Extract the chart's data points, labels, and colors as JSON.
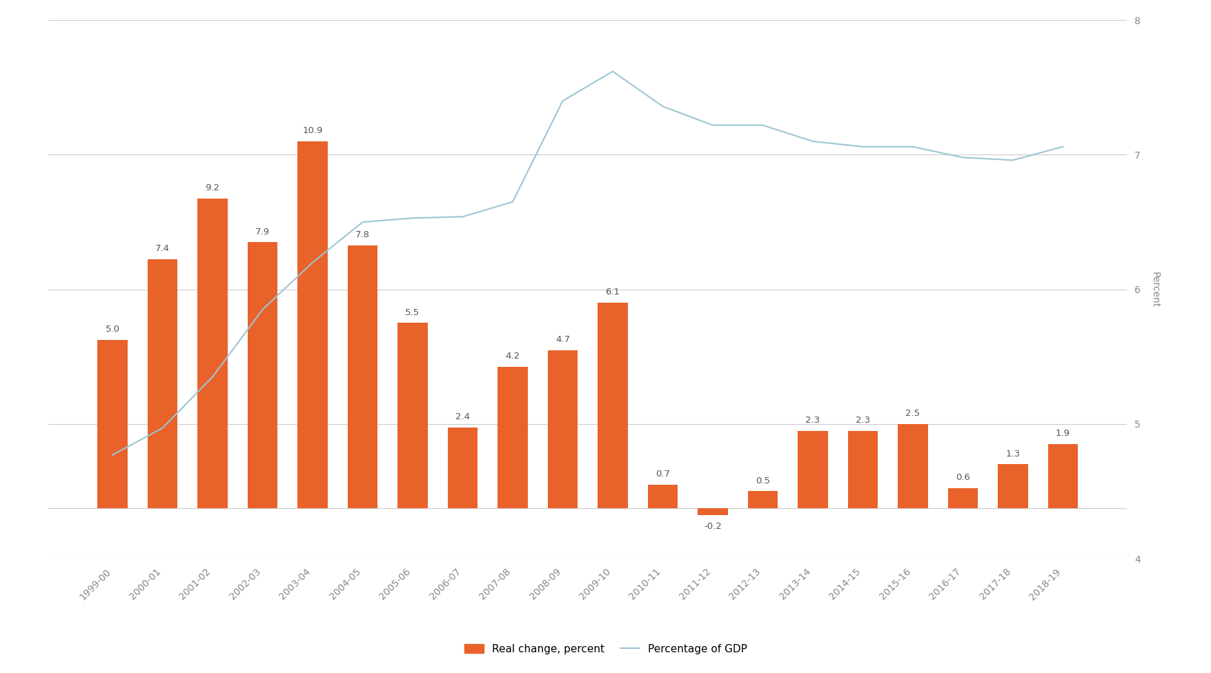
{
  "categories": [
    "1999-00",
    "2000-01",
    "2001-02",
    "2002-03",
    "2003-04",
    "2004-05",
    "2005-06",
    "2006-07",
    "2007-08",
    "2008-09",
    "2009-10",
    "2010-11",
    "2011-12",
    "2012-13",
    "2013-14",
    "2014-15",
    "2015-16",
    "2016-17",
    "2017-18",
    "2018-19"
  ],
  "bar_values": [
    5.0,
    7.4,
    9.2,
    7.9,
    10.9,
    7.8,
    5.5,
    2.4,
    4.2,
    4.7,
    6.1,
    0.7,
    -0.2,
    0.5,
    2.3,
    2.3,
    2.5,
    0.6,
    1.3,
    1.9
  ],
  "gdp_values": [
    4.77,
    4.97,
    5.35,
    5.85,
    6.2,
    6.5,
    6.53,
    6.54,
    6.65,
    7.4,
    7.62,
    7.36,
    7.22,
    7.22,
    7.1,
    7.06,
    7.06,
    6.98,
    6.96,
    7.06
  ],
  "bar_color": "#E8622A",
  "line_color": "#9DC5D4",
  "background_color": "#FFFFFF",
  "grid_color": "#CCCCCC",
  "bar_label_fontsize": 9.5,
  "bar_label_color": "#555555",
  "tick_label_fontsize": 10,
  "tick_label_color": "#888888",
  "ylabel_right": "Percent",
  "ylabel_right_fontsize": 10,
  "ylim_left": [
    -1.5,
    14.5
  ],
  "ylim_right": [
    4,
    8
  ],
  "yticks_right": [
    4,
    5,
    6,
    7,
    8
  ],
  "legend_bar_label": "Real change, percent",
  "legend_line_label": "Percentage of GDP",
  "legend_fontsize": 11
}
